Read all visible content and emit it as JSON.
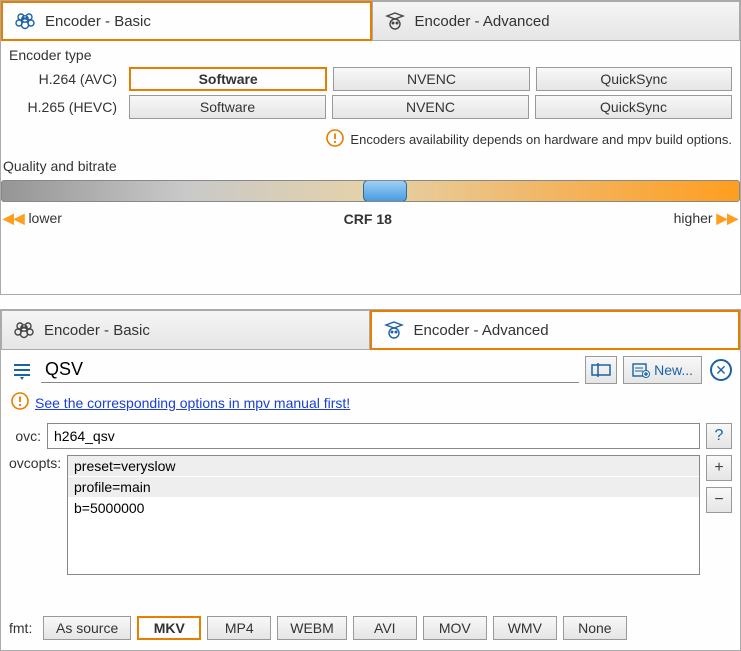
{
  "colors": {
    "accent": "#e67e00",
    "link": "#1a3fd4",
    "icon_blue": "#1b62a5"
  },
  "panel1": {
    "tabs": {
      "basic": "Encoder - Basic",
      "advanced": "Encoder - Advanced",
      "active": "basic"
    },
    "encoder_type_label": "Encoder type",
    "rows": [
      {
        "label": "H.264 (AVC)",
        "buttons": [
          "Software",
          "NVENC",
          "QuickSync"
        ],
        "selected": 0
      },
      {
        "label": "H.265 (HEVC)",
        "buttons": [
          "Software",
          "NVENC",
          "QuickSync"
        ],
        "selected": -1
      }
    ],
    "info": "Encoders availability depends on hardware and mpv build options.",
    "quality_label": "Quality and bitrate",
    "slider": {
      "lower": "lower",
      "higher": "higher",
      "value_label": "CRF 18",
      "thumb_position_pct": 49,
      "gradient_stops": [
        "#969595",
        "#c9c9c9",
        "#e5d2a8",
        "#f2b562",
        "#ff9e1f"
      ]
    }
  },
  "panel2": {
    "tabs": {
      "basic": "Encoder - Basic",
      "advanced": "Encoder - Advanced",
      "active": "advanced"
    },
    "search_value": "QSV",
    "new_label": "New...",
    "manual_link": "See the corresponding options in mpv manual first!",
    "ovc_label": "ovc:",
    "ovc_value": "h264_qsv",
    "ovcopts_label": "ovcopts:",
    "ovcopts": [
      "preset=veryslow",
      "profile=main",
      "b=5000000"
    ],
    "fmt_label": "fmt:",
    "formats": [
      "As source",
      "MKV",
      "MP4",
      "WEBM",
      "AVI",
      "MOV",
      "WMV",
      "None"
    ],
    "fmt_selected": 1
  }
}
